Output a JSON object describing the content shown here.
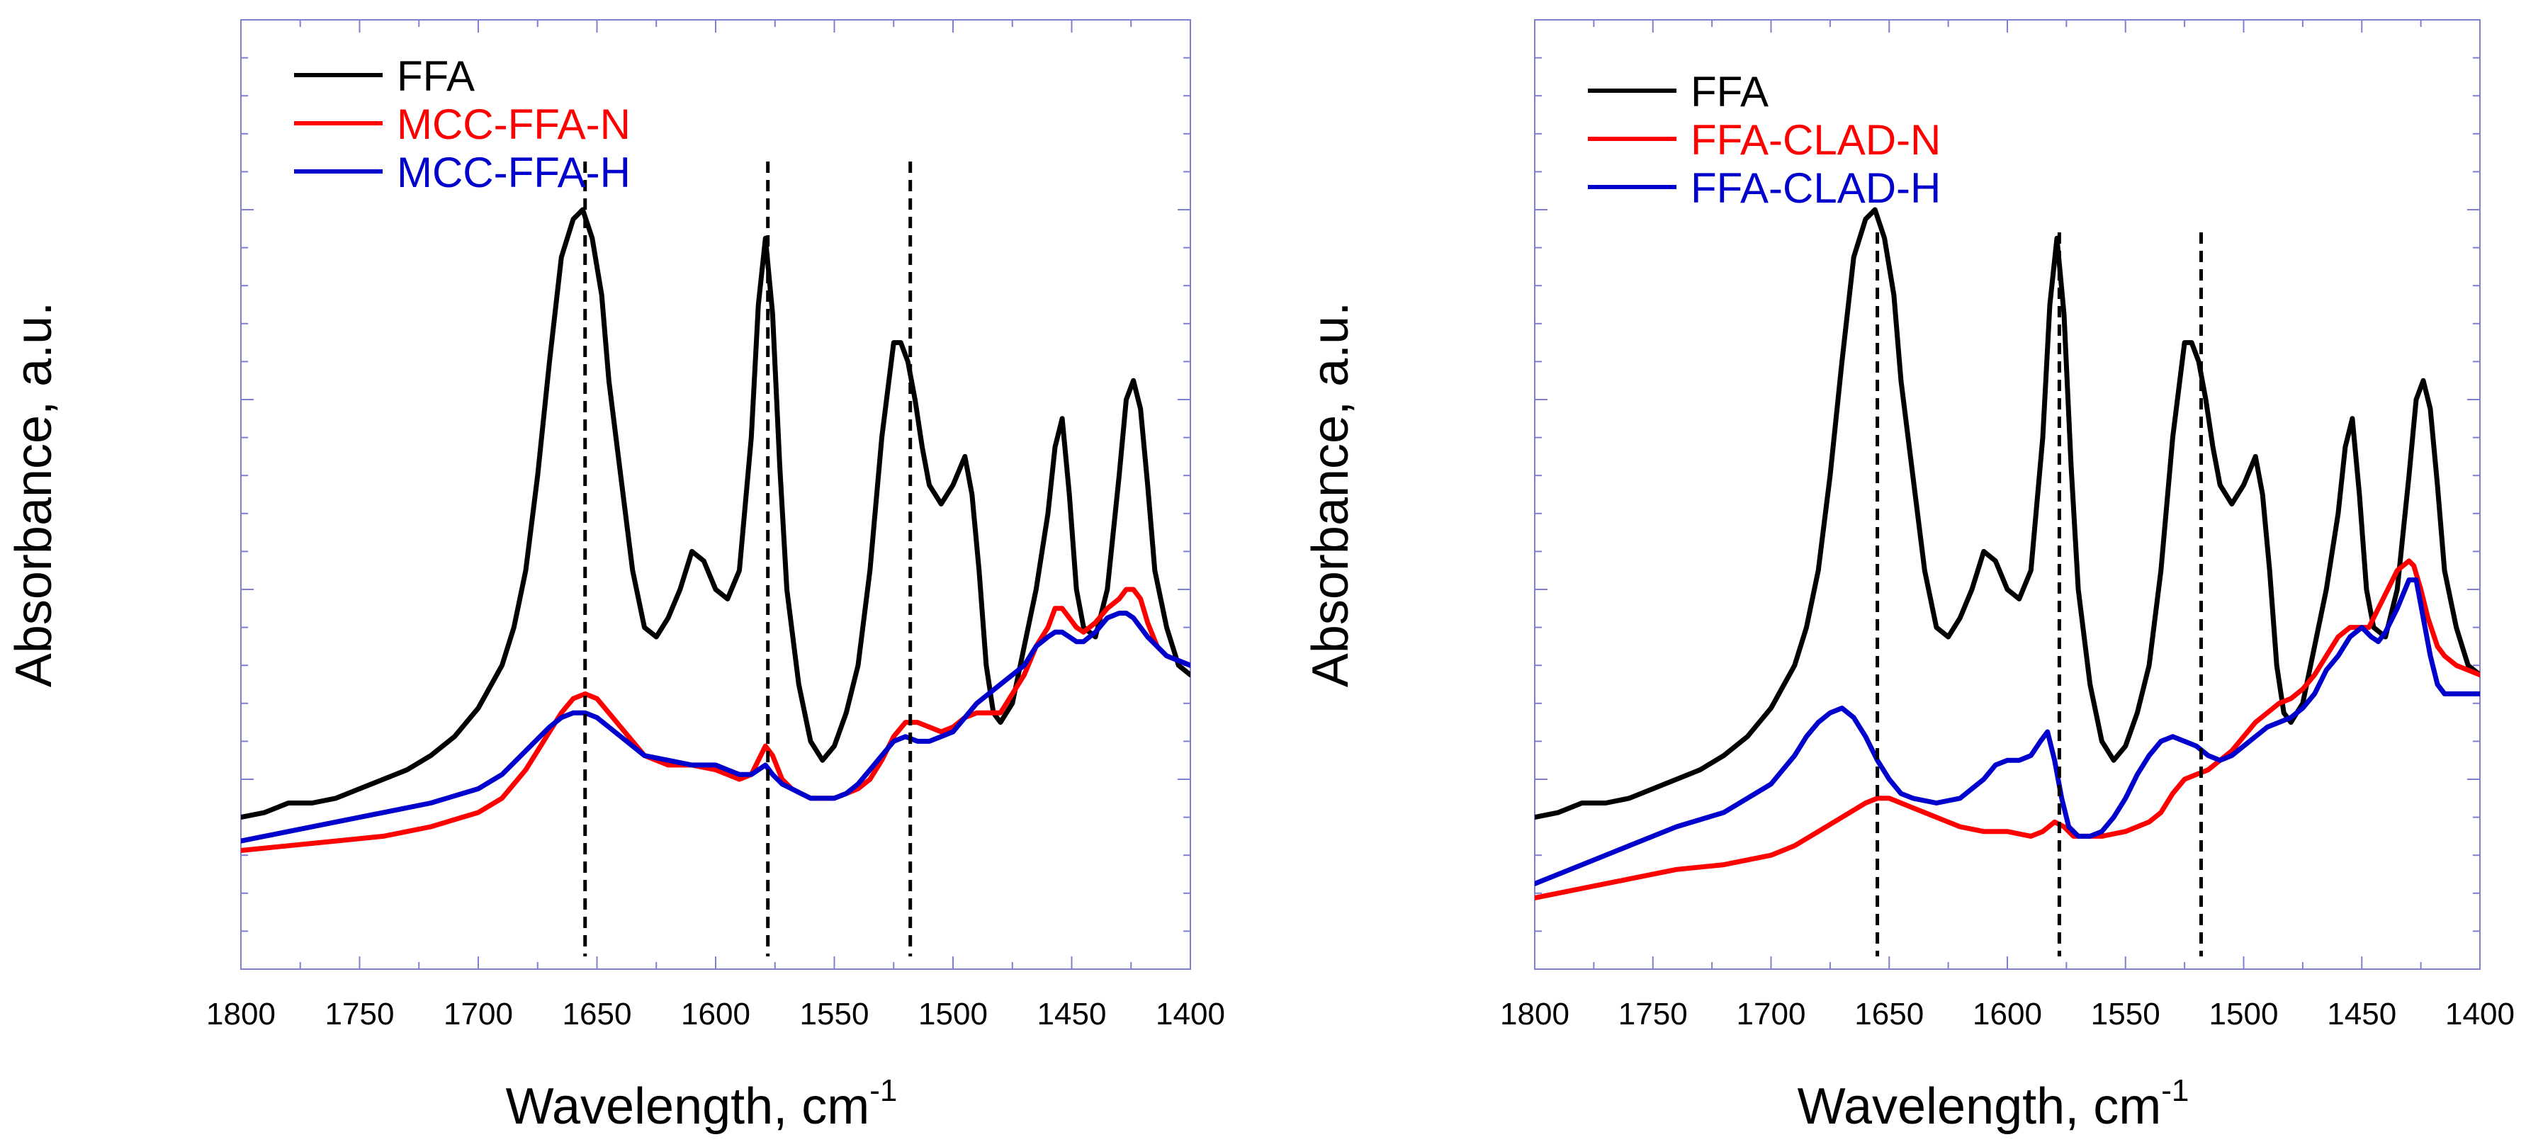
{
  "chart_data": [
    {
      "type": "line",
      "xlabel": "Wavelength, cm",
      "xlabel_superscript": "-1",
      "ylabel": "Absorbance, a.u.",
      "xlim": [
        1800,
        1400
      ],
      "ylim": [
        0,
        1
      ],
      "xticks": [
        "1800",
        "1750",
        "1700",
        "1650",
        "1600",
        "1550",
        "1500",
        "1450",
        "1400"
      ],
      "xtick_values": [
        1800,
        1750,
        1700,
        1650,
        1600,
        1550,
        1500,
        1450,
        1400
      ],
      "yticks_shown": false,
      "legend_position": "top-left",
      "reference_lines": [
        1655,
        1578,
        1518
      ],
      "series": [
        {
          "name": "FFA",
          "color": "#000000",
          "x": [
            1800,
            1790,
            1780,
            1770,
            1760,
            1750,
            1740,
            1730,
            1720,
            1710,
            1700,
            1690,
            1685,
            1680,
            1675,
            1670,
            1665,
            1660,
            1656,
            1652,
            1648,
            1645,
            1640,
            1635,
            1630,
            1625,
            1620,
            1615,
            1610,
            1605,
            1600,
            1595,
            1590,
            1585,
            1582,
            1579,
            1576,
            1573,
            1570,
            1565,
            1560,
            1555,
            1550,
            1545,
            1540,
            1535,
            1530,
            1525,
            1522,
            1519,
            1516,
            1513,
            1510,
            1505,
            1500,
            1495,
            1492,
            1489,
            1486,
            1483,
            1480,
            1475,
            1470,
            1465,
            1460,
            1457,
            1454,
            1451,
            1448,
            1445,
            1440,
            1435,
            1430,
            1427,
            1424,
            1421,
            1418,
            1415,
            1410,
            1405,
            1400
          ],
          "y": [
            0.16,
            0.165,
            0.175,
            0.175,
            0.18,
            0.19,
            0.2,
            0.21,
            0.225,
            0.245,
            0.275,
            0.32,
            0.36,
            0.42,
            0.52,
            0.64,
            0.75,
            0.79,
            0.8,
            0.77,
            0.71,
            0.62,
            0.52,
            0.42,
            0.36,
            0.35,
            0.37,
            0.4,
            0.44,
            0.43,
            0.4,
            0.39,
            0.42,
            0.56,
            0.7,
            0.77,
            0.69,
            0.53,
            0.4,
            0.3,
            0.24,
            0.22,
            0.235,
            0.27,
            0.32,
            0.42,
            0.56,
            0.66,
            0.66,
            0.64,
            0.6,
            0.55,
            0.51,
            0.49,
            0.51,
            0.54,
            0.5,
            0.42,
            0.32,
            0.27,
            0.26,
            0.28,
            0.34,
            0.4,
            0.48,
            0.55,
            0.58,
            0.5,
            0.4,
            0.36,
            0.35,
            0.4,
            0.52,
            0.6,
            0.62,
            0.59,
            0.51,
            0.42,
            0.36,
            0.32,
            0.31
          ]
        },
        {
          "name": "MCC-FFA-N",
          "color": "#ff0000",
          "x": [
            1800,
            1780,
            1760,
            1740,
            1720,
            1700,
            1690,
            1680,
            1670,
            1665,
            1660,
            1655,
            1650,
            1645,
            1640,
            1635,
            1630,
            1620,
            1610,
            1600,
            1595,
            1590,
            1585,
            1582,
            1579,
            1576,
            1572,
            1568,
            1564,
            1560,
            1555,
            1550,
            1545,
            1540,
            1535,
            1530,
            1525,
            1520,
            1515,
            1510,
            1505,
            1500,
            1495,
            1490,
            1485,
            1480,
            1475,
            1470,
            1465,
            1460,
            1457,
            1454,
            1451,
            1448,
            1445,
            1440,
            1435,
            1430,
            1427,
            1424,
            1421,
            1418,
            1414,
            1410,
            1405,
            1400
          ],
          "y": [
            0.125,
            0.13,
            0.135,
            0.14,
            0.15,
            0.165,
            0.18,
            0.21,
            0.25,
            0.27,
            0.285,
            0.29,
            0.285,
            0.27,
            0.255,
            0.24,
            0.225,
            0.215,
            0.215,
            0.21,
            0.205,
            0.2,
            0.205,
            0.22,
            0.235,
            0.225,
            0.2,
            0.19,
            0.185,
            0.18,
            0.18,
            0.18,
            0.185,
            0.19,
            0.2,
            0.22,
            0.245,
            0.26,
            0.26,
            0.255,
            0.25,
            0.255,
            0.265,
            0.27,
            0.27,
            0.27,
            0.29,
            0.31,
            0.34,
            0.36,
            0.38,
            0.38,
            0.37,
            0.36,
            0.355,
            0.365,
            0.38,
            0.39,
            0.4,
            0.4,
            0.39,
            0.365,
            0.34,
            0.33,
            0.325,
            0.32
          ]
        },
        {
          "name": "MCC-FFA-H",
          "color": "#0000cc",
          "x": [
            1800,
            1780,
            1760,
            1740,
            1720,
            1700,
            1690,
            1680,
            1670,
            1665,
            1660,
            1655,
            1650,
            1645,
            1640,
            1635,
            1630,
            1620,
            1610,
            1600,
            1595,
            1590,
            1585,
            1582,
            1579,
            1576,
            1572,
            1568,
            1564,
            1560,
            1555,
            1550,
            1545,
            1540,
            1535,
            1530,
            1525,
            1520,
            1515,
            1510,
            1505,
            1500,
            1495,
            1490,
            1485,
            1480,
            1475,
            1470,
            1465,
            1460,
            1457,
            1454,
            1451,
            1448,
            1445,
            1440,
            1435,
            1430,
            1427,
            1424,
            1421,
            1418,
            1414,
            1410,
            1405,
            1400
          ],
          "y": [
            0.135,
            0.145,
            0.155,
            0.165,
            0.175,
            0.19,
            0.205,
            0.23,
            0.255,
            0.265,
            0.27,
            0.27,
            0.265,
            0.255,
            0.245,
            0.235,
            0.225,
            0.22,
            0.215,
            0.215,
            0.21,
            0.205,
            0.205,
            0.21,
            0.215,
            0.205,
            0.195,
            0.19,
            0.185,
            0.18,
            0.18,
            0.18,
            0.185,
            0.195,
            0.21,
            0.225,
            0.24,
            0.245,
            0.24,
            0.24,
            0.245,
            0.25,
            0.265,
            0.28,
            0.29,
            0.3,
            0.31,
            0.32,
            0.34,
            0.35,
            0.355,
            0.355,
            0.35,
            0.345,
            0.345,
            0.355,
            0.37,
            0.375,
            0.375,
            0.37,
            0.36,
            0.35,
            0.34,
            0.33,
            0.325,
            0.32
          ]
        }
      ]
    },
    {
      "type": "line",
      "xlabel": "Wavelength, cm",
      "xlabel_superscript": "-1",
      "ylabel": "Absorbance, a.u.",
      "xlim": [
        1800,
        1400
      ],
      "ylim": [
        0,
        1
      ],
      "xticks": [
        "1800",
        "1750",
        "1700",
        "1650",
        "1600",
        "1550",
        "1500",
        "1450",
        "1400"
      ],
      "xtick_values": [
        1800,
        1750,
        1700,
        1650,
        1600,
        1550,
        1500,
        1450,
        1400
      ],
      "yticks_shown": false,
      "legend_position": "top-left",
      "reference_lines": [
        1655,
        1578,
        1518
      ],
      "series": [
        {
          "name": "FFA",
          "color": "#000000",
          "x": [
            1800,
            1790,
            1780,
            1770,
            1760,
            1750,
            1740,
            1730,
            1720,
            1710,
            1700,
            1690,
            1685,
            1680,
            1675,
            1670,
            1665,
            1660,
            1656,
            1652,
            1648,
            1645,
            1640,
            1635,
            1630,
            1625,
            1620,
            1615,
            1610,
            1605,
            1600,
            1595,
            1590,
            1585,
            1582,
            1579,
            1576,
            1573,
            1570,
            1565,
            1560,
            1555,
            1550,
            1545,
            1540,
            1535,
            1530,
            1525,
            1522,
            1519,
            1516,
            1513,
            1510,
            1505,
            1500,
            1495,
            1492,
            1489,
            1486,
            1483,
            1480,
            1475,
            1470,
            1465,
            1460,
            1457,
            1454,
            1451,
            1448,
            1445,
            1440,
            1435,
            1430,
            1427,
            1424,
            1421,
            1418,
            1415,
            1410,
            1405,
            1400
          ],
          "y": [
            0.16,
            0.165,
            0.175,
            0.175,
            0.18,
            0.19,
            0.2,
            0.21,
            0.225,
            0.245,
            0.275,
            0.32,
            0.36,
            0.42,
            0.52,
            0.64,
            0.75,
            0.79,
            0.8,
            0.77,
            0.71,
            0.62,
            0.52,
            0.42,
            0.36,
            0.35,
            0.37,
            0.4,
            0.44,
            0.43,
            0.4,
            0.39,
            0.42,
            0.56,
            0.7,
            0.77,
            0.69,
            0.53,
            0.4,
            0.3,
            0.24,
            0.22,
            0.235,
            0.27,
            0.32,
            0.42,
            0.56,
            0.66,
            0.66,
            0.64,
            0.6,
            0.55,
            0.51,
            0.49,
            0.51,
            0.54,
            0.5,
            0.42,
            0.32,
            0.27,
            0.26,
            0.28,
            0.34,
            0.4,
            0.48,
            0.55,
            0.58,
            0.5,
            0.4,
            0.36,
            0.35,
            0.4,
            0.52,
            0.6,
            0.62,
            0.59,
            0.51,
            0.42,
            0.36,
            0.32,
            0.31
          ]
        },
        {
          "name": "FFA-CLAD-N",
          "color": "#ff0000",
          "x": [
            1800,
            1780,
            1760,
            1740,
            1720,
            1700,
            1690,
            1680,
            1670,
            1660,
            1655,
            1650,
            1640,
            1630,
            1620,
            1610,
            1600,
            1590,
            1585,
            1580,
            1576,
            1572,
            1568,
            1564,
            1560,
            1550,
            1540,
            1535,
            1530,
            1525,
            1520,
            1515,
            1510,
            1505,
            1500,
            1495,
            1490,
            1485,
            1480,
            1475,
            1470,
            1465,
            1460,
            1455,
            1450,
            1447,
            1444,
            1440,
            1435,
            1430,
            1428,
            1425,
            1422,
            1418,
            1415,
            1410,
            1405,
            1400
          ],
          "y": [
            0.075,
            0.085,
            0.095,
            0.105,
            0.11,
            0.12,
            0.13,
            0.145,
            0.16,
            0.175,
            0.18,
            0.18,
            0.17,
            0.16,
            0.15,
            0.145,
            0.145,
            0.14,
            0.145,
            0.155,
            0.15,
            0.14,
            0.14,
            0.14,
            0.14,
            0.145,
            0.155,
            0.165,
            0.185,
            0.2,
            0.205,
            0.21,
            0.22,
            0.23,
            0.245,
            0.26,
            0.27,
            0.28,
            0.285,
            0.295,
            0.31,
            0.33,
            0.35,
            0.36,
            0.36,
            0.36,
            0.375,
            0.395,
            0.42,
            0.43,
            0.425,
            0.4,
            0.37,
            0.34,
            0.33,
            0.32,
            0.315,
            0.31
          ]
        },
        {
          "name": "FFA-CLAD-H",
          "color": "#0000cc",
          "x": [
            1800,
            1780,
            1760,
            1740,
            1720,
            1700,
            1690,
            1685,
            1680,
            1675,
            1670,
            1665,
            1660,
            1655,
            1650,
            1645,
            1640,
            1630,
            1620,
            1615,
            1610,
            1605,
            1600,
            1595,
            1590,
            1586,
            1583,
            1580,
            1577,
            1574,
            1570,
            1565,
            1560,
            1555,
            1550,
            1545,
            1540,
            1535,
            1530,
            1525,
            1520,
            1515,
            1510,
            1505,
            1500,
            1495,
            1490,
            1485,
            1480,
            1475,
            1470,
            1465,
            1460,
            1455,
            1450,
            1446,
            1443,
            1440,
            1435,
            1430,
            1427,
            1424,
            1421,
            1418,
            1415,
            1410,
            1405,
            1400
          ],
          "y": [
            0.09,
            0.11,
            0.13,
            0.15,
            0.165,
            0.195,
            0.225,
            0.245,
            0.26,
            0.27,
            0.275,
            0.265,
            0.245,
            0.22,
            0.2,
            0.185,
            0.18,
            0.175,
            0.18,
            0.19,
            0.2,
            0.215,
            0.22,
            0.22,
            0.225,
            0.24,
            0.25,
            0.22,
            0.18,
            0.15,
            0.14,
            0.14,
            0.145,
            0.16,
            0.18,
            0.205,
            0.225,
            0.24,
            0.245,
            0.24,
            0.235,
            0.225,
            0.22,
            0.225,
            0.235,
            0.245,
            0.255,
            0.26,
            0.265,
            0.275,
            0.29,
            0.315,
            0.33,
            0.35,
            0.36,
            0.35,
            0.345,
            0.355,
            0.38,
            0.41,
            0.41,
            0.37,
            0.33,
            0.3,
            0.29,
            0.29,
            0.29,
            0.29
          ]
        }
      ]
    }
  ]
}
